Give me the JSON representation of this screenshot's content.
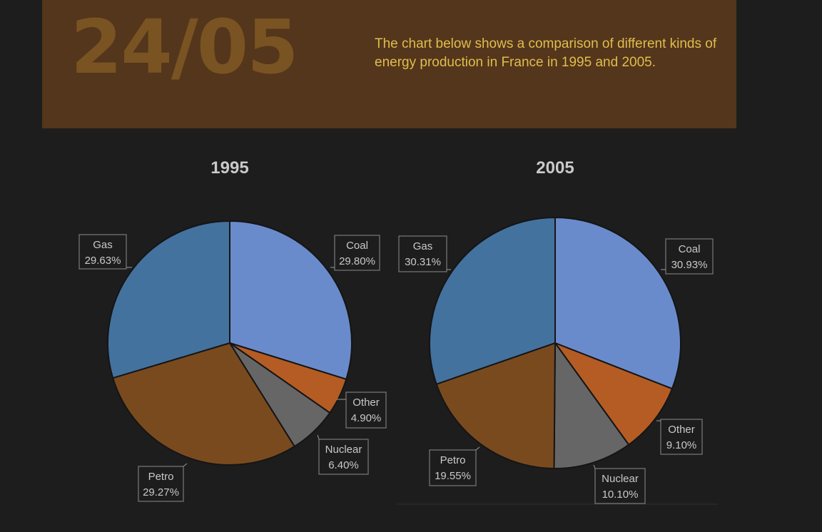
{
  "header": {
    "date": "24/05",
    "description": "The chart below shows a comparison of different kinds of energy production in France in 1995 and 2005."
  },
  "colors": {
    "Coal": "#6a8bcb",
    "Other": "#b55c24",
    "Nuclear": "#666666",
    "Petro": "#7a4a1f",
    "Gas": "#44729f"
  },
  "chart_data": [
    {
      "type": "pie",
      "title": "1995",
      "categories": [
        "Coal",
        "Other",
        "Nuclear",
        "Petro",
        "Gas"
      ],
      "values": [
        29.8,
        4.9,
        6.4,
        29.27,
        29.63
      ],
      "labels": [
        "29.80%",
        "4.90%",
        "6.40%",
        "29.27%",
        "29.63%"
      ]
    },
    {
      "type": "pie",
      "title": "2005",
      "categories": [
        "Coal",
        "Other",
        "Nuclear",
        "Petro",
        "Gas"
      ],
      "values": [
        30.93,
        9.1,
        10.1,
        19.55,
        30.31
      ],
      "labels": [
        "30.93%",
        "9.10%",
        "10.10%",
        "19.55%",
        "30.31%"
      ]
    }
  ]
}
